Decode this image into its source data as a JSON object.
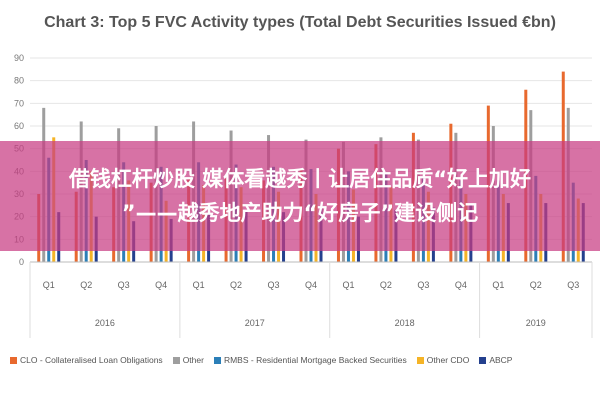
{
  "chart_data": {
    "type": "bar",
    "title": "Chart 3: Top 5 FVC Activity types (Total Debt Securities Issued €bn)",
    "categories": [
      "Q1",
      "Q2",
      "Q3",
      "Q4",
      "Q1",
      "Q2",
      "Q3",
      "Q4",
      "Q1",
      "Q2",
      "Q3",
      "Q4",
      "Q1",
      "Q2",
      "Q3"
    ],
    "groups": [
      {
        "label": "2016",
        "count": 4
      },
      {
        "label": "2017",
        "count": 4
      },
      {
        "label": "2018",
        "count": 4
      },
      {
        "label": "2019",
        "count": 3
      }
    ],
    "ylim": [
      0,
      90
    ],
    "yticks": [
      0,
      10,
      20,
      30,
      40,
      50,
      60,
      70,
      80,
      90
    ],
    "grid": true,
    "legend_position": "bottom",
    "series": [
      {
        "name": "CLO - Collateralised Loan Obligations",
        "color": "#E8692E",
        "values": [
          30,
          31,
          33,
          35,
          37,
          38,
          36,
          41,
          50,
          52,
          57,
          61,
          69,
          76,
          84
        ]
      },
      {
        "name": "Other",
        "color": "#9E9E9E",
        "values": [
          68,
          62,
          59,
          60,
          62,
          58,
          56,
          54,
          53,
          55,
          54,
          57,
          60,
          67,
          68
        ]
      },
      {
        "name": "RMBS - Residential Mortgage Backed Securities",
        "color": "#2B7FB8",
        "values": [
          46,
          45,
          44,
          42,
          44,
          43,
          42,
          41,
          40,
          39,
          38,
          36,
          36,
          38,
          35
        ]
      },
      {
        "name": "Other CDO",
        "color": "#F5B427",
        "values": [
          55,
          40,
          36,
          27,
          34,
          33,
          31,
          30,
          32,
          33,
          31,
          30,
          30,
          30,
          28
        ]
      },
      {
        "name": "ABCP",
        "color": "#24408E",
        "values": [
          22,
          20,
          18,
          19,
          21,
          23,
          22,
          24,
          20,
          23,
          24,
          25,
          26,
          26,
          26
        ]
      }
    ]
  },
  "overlay": {
    "line1": "借钱杠杆炒股 媒体看越秀丨让居住品质“好上加好",
    "line2": "”——越秀地产助力“好房子”建设侧记"
  }
}
